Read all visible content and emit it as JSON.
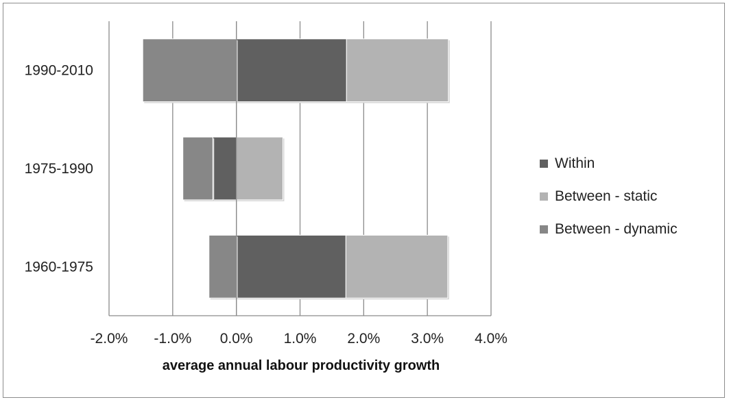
{
  "chart_data": {
    "type": "bar",
    "orientation": "horizontal",
    "stacked": true,
    "categories": [
      "1960-1975",
      "1975-1990",
      "1990-2010"
    ],
    "series": [
      {
        "name": "Within",
        "values": [
          1.72,
          -0.37,
          1.73
        ],
        "color": "#606060"
      },
      {
        "name": "Between - static",
        "values": [
          1.6,
          0.73,
          1.6
        ],
        "color": "#b3b3b3"
      },
      {
        "name": "Between - dynamic",
        "values": [
          -0.43,
          -0.47,
          -1.47
        ],
        "color": "#878787"
      }
    ],
    "x_ticks": [
      "-2.0%",
      "-1.0%",
      "0.0%",
      "1.0%",
      "2.0%",
      "3.0%",
      "4.0%"
    ],
    "xlim": [
      -2.0,
      4.0
    ],
    "xlabel": "average annual labour productivity growth",
    "ylabel": "",
    "title": "",
    "grid": "vertical",
    "legend_position": "right"
  }
}
